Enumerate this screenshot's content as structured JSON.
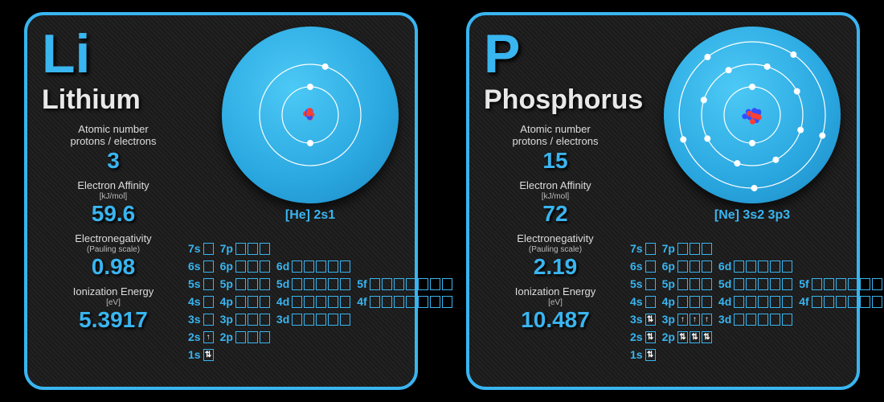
{
  "accent": "#39b5f0",
  "cards": [
    {
      "symbol": "Li",
      "name": "Lithium",
      "config": "[He] 2s1",
      "shells": [
        2,
        1
      ],
      "nucleus_size": 6,
      "props": {
        "atomic_number_label": "Atomic number\nprotons / electrons",
        "atomic_number": "3",
        "affinity_label": "Electron Affinity",
        "affinity_unit": "[kJ/mol]",
        "affinity": "59.6",
        "eneg_label": "Electronegativity",
        "eneg_unit": "(Pauling scale)",
        "eneg": "0.98",
        "ion_label": "Ionization Energy",
        "ion_unit": "[eV]",
        "ion": "5.3917"
      },
      "orbitals": {
        "fill_1s": "both",
        "fill_2s": "up",
        "fill_2p": [
          "",
          "",
          ""
        ],
        "fill_3s": "",
        "fill_3p": [
          "",
          "",
          ""
        ]
      }
    },
    {
      "symbol": "P",
      "name": "Phosphorus",
      "config": "[Ne] 3s2 3p3",
      "shells": [
        2,
        8,
        5
      ],
      "nucleus_size": 10,
      "props": {
        "atomic_number_label": "Atomic number\nprotons / electrons",
        "atomic_number": "15",
        "affinity_label": "Electron Affinity",
        "affinity_unit": "[kJ/mol]",
        "affinity": "72",
        "eneg_label": "Electronegativity",
        "eneg_unit": "(Pauling scale)",
        "eneg": "2.19",
        "ion_label": "Ionization Energy",
        "ion_unit": "[eV]",
        "ion": "10.487"
      },
      "orbitals": {
        "fill_1s": "both",
        "fill_2s": "both",
        "fill_2p": [
          "both",
          "both",
          "both"
        ],
        "fill_3s": "both",
        "fill_3p": [
          "up",
          "up",
          "up"
        ]
      }
    }
  ],
  "orbital_structure": [
    [
      "7s",
      1,
      "7p",
      3
    ],
    [
      "6s",
      1,
      "6p",
      3,
      "6d",
      5
    ],
    [
      "5s",
      1,
      "5p",
      3,
      "5d",
      5,
      "5f",
      7
    ],
    [
      "4s",
      1,
      "4p",
      3,
      "4d",
      5,
      "4f",
      7
    ],
    [
      "3s",
      1,
      "3p",
      3,
      "3d",
      5
    ],
    [
      "2s",
      1,
      "2p",
      3
    ],
    [
      "1s",
      1
    ]
  ]
}
